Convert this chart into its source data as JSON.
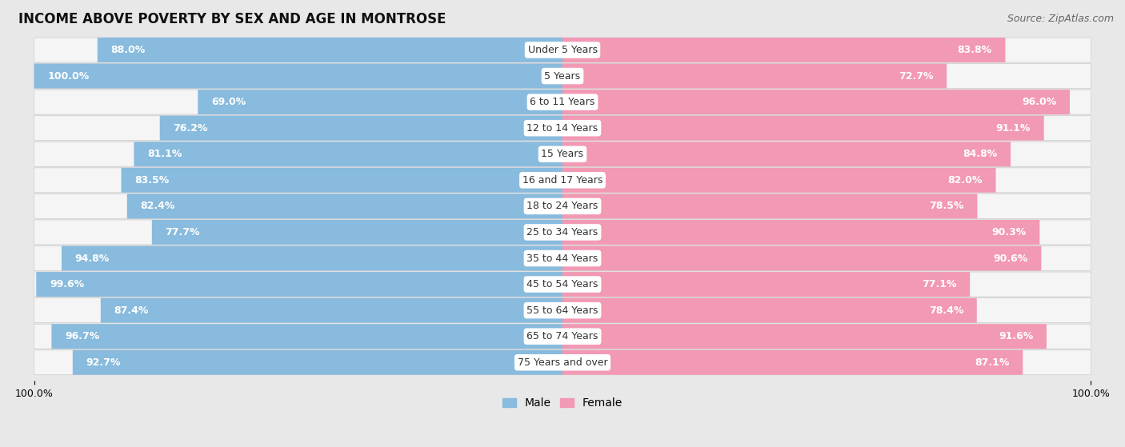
{
  "title": "INCOME ABOVE POVERTY BY SEX AND AGE IN MONTROSE",
  "source": "Source: ZipAtlas.com",
  "categories": [
    "Under 5 Years",
    "5 Years",
    "6 to 11 Years",
    "12 to 14 Years",
    "15 Years",
    "16 and 17 Years",
    "18 to 24 Years",
    "25 to 34 Years",
    "35 to 44 Years",
    "45 to 54 Years",
    "55 to 64 Years",
    "65 to 74 Years",
    "75 Years and over"
  ],
  "male_values": [
    88.0,
    100.0,
    69.0,
    76.2,
    81.1,
    83.5,
    82.4,
    77.7,
    94.8,
    99.6,
    87.4,
    96.7,
    92.7
  ],
  "female_values": [
    83.8,
    72.7,
    96.0,
    91.1,
    84.8,
    82.0,
    78.5,
    90.3,
    90.6,
    77.1,
    78.4,
    91.6,
    87.1
  ],
  "male_color": "#88bbdd",
  "female_color": "#f299b4",
  "background_color": "#e8e8e8",
  "bar_background_color": "#f5f5f5",
  "value_fontsize": 9,
  "label_fontsize": 9,
  "title_fontsize": 12,
  "legend_fontsize": 10,
  "source_fontsize": 9
}
